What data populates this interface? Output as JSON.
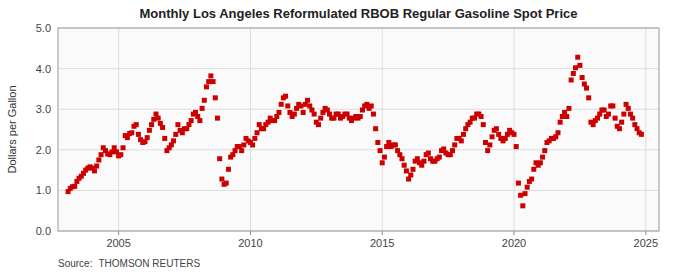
{
  "chart_data": {
    "type": "scatter",
    "title": "Monthly Los Angeles Reformulated RBOB Regular Gasoline Spot Price",
    "y_label": "Dollars per Gallon",
    "annotations": [
      "Source:",
      "THOMSON REUTERS"
    ],
    "color": "#cc0000",
    "marker": "square",
    "grid": true,
    "xlim": [
      2002.7,
      2025.5
    ],
    "xticks": [
      2005,
      2010,
      2015,
      2020,
      2025
    ],
    "ylim": [
      0.0,
      5.0
    ],
    "yticks": [
      {
        "value": 0.0,
        "label": "0.0"
      },
      {
        "value": 1.0,
        "label": "1.0"
      },
      {
        "value": 2.0,
        "label": "2.0"
      },
      {
        "value": 3.0,
        "label": "3.0"
      },
      {
        "value": 4.0,
        "label": "4.0"
      },
      {
        "value": 5.0,
        "label": "5.0"
      }
    ],
    "x": [
      2003.083,
      2003.167,
      2003.25,
      2003.333,
      2003.417,
      2003.5,
      2003.583,
      2003.667,
      2003.75,
      2003.833,
      2003.917,
      2004.0,
      2004.083,
      2004.167,
      2004.25,
      2004.333,
      2004.417,
      2004.5,
      2004.583,
      2004.667,
      2004.75,
      2004.833,
      2004.917,
      2005.0,
      2005.083,
      2005.167,
      2005.25,
      2005.333,
      2005.417,
      2005.5,
      2005.583,
      2005.667,
      2005.75,
      2005.833,
      2005.917,
      2006.0,
      2006.083,
      2006.167,
      2006.25,
      2006.333,
      2006.417,
      2006.5,
      2006.583,
      2006.667,
      2006.75,
      2006.833,
      2006.917,
      2007.0,
      2007.083,
      2007.167,
      2007.25,
      2007.333,
      2007.417,
      2007.5,
      2007.583,
      2007.667,
      2007.75,
      2007.833,
      2007.917,
      2008.0,
      2008.083,
      2008.167,
      2008.25,
      2008.333,
      2008.417,
      2008.5,
      2008.583,
      2008.667,
      2008.75,
      2008.833,
      2008.917,
      2009.0,
      2009.083,
      2009.167,
      2009.25,
      2009.333,
      2009.417,
      2009.5,
      2009.583,
      2009.667,
      2009.75,
      2009.833,
      2009.917,
      2010.0,
      2010.083,
      2010.167,
      2010.25,
      2010.333,
      2010.417,
      2010.5,
      2010.583,
      2010.667,
      2010.75,
      2010.833,
      2010.917,
      2011.0,
      2011.083,
      2011.167,
      2011.25,
      2011.333,
      2011.417,
      2011.5,
      2011.583,
      2011.667,
      2011.75,
      2011.833,
      2011.917,
      2012.0,
      2012.083,
      2012.167,
      2012.25,
      2012.333,
      2012.417,
      2012.5,
      2012.583,
      2012.667,
      2012.75,
      2012.833,
      2012.917,
      2013.0,
      2013.083,
      2013.167,
      2013.25,
      2013.333,
      2013.417,
      2013.5,
      2013.583,
      2013.667,
      2013.75,
      2013.833,
      2013.917,
      2014.0,
      2014.083,
      2014.167,
      2014.25,
      2014.333,
      2014.417,
      2014.5,
      2014.583,
      2014.667,
      2014.75,
      2014.833,
      2014.917,
      2015.0,
      2015.083,
      2015.167,
      2015.25,
      2015.333,
      2015.417,
      2015.5,
      2015.583,
      2015.667,
      2015.75,
      2015.833,
      2015.917,
      2016.0,
      2016.083,
      2016.167,
      2016.25,
      2016.333,
      2016.417,
      2016.5,
      2016.583,
      2016.667,
      2016.75,
      2016.833,
      2016.917,
      2017.0,
      2017.083,
      2017.167,
      2017.25,
      2017.333,
      2017.417,
      2017.5,
      2017.583,
      2017.667,
      2017.75,
      2017.833,
      2017.917,
      2018.0,
      2018.083,
      2018.167,
      2018.25,
      2018.333,
      2018.417,
      2018.5,
      2018.583,
      2018.667,
      2018.75,
      2018.833,
      2018.917,
      2019.0,
      2019.083,
      2019.167,
      2019.25,
      2019.333,
      2019.417,
      2019.5,
      2019.583,
      2019.667,
      2019.75,
      2019.833,
      2019.917,
      2020.0,
      2020.083,
      2020.167,
      2020.25,
      2020.333,
      2020.417,
      2020.5,
      2020.583,
      2020.667,
      2020.75,
      2020.833,
      2020.917,
      2021.0,
      2021.083,
      2021.167,
      2021.25,
      2021.333,
      2021.417,
      2021.5,
      2021.583,
      2021.667,
      2021.75,
      2021.833,
      2021.917,
      2022.0,
      2022.083,
      2022.167,
      2022.25,
      2022.333,
      2022.417,
      2022.5,
      2022.583,
      2022.667,
      2022.75,
      2022.833,
      2022.917,
      2023.0,
      2023.083,
      2023.167,
      2023.25,
      2023.333,
      2023.417,
      2023.5,
      2023.583,
      2023.667,
      2023.75,
      2023.833,
      2023.917,
      2024.0,
      2024.083,
      2024.167,
      2024.25,
      2024.333,
      2024.417,
      2024.5,
      2024.583,
      2024.667,
      2024.75,
      2024.833
    ],
    "values": [
      0.97,
      1.05,
      1.09,
      1.1,
      1.22,
      1.3,
      1.35,
      1.42,
      1.5,
      1.55,
      1.58,
      1.55,
      1.48,
      1.6,
      1.75,
      1.88,
      2.05,
      1.98,
      1.9,
      1.88,
      1.95,
      2.05,
      1.95,
      1.85,
      1.88,
      2.05,
      2.35,
      2.3,
      2.4,
      2.42,
      2.58,
      2.62,
      2.38,
      2.25,
      2.18,
      2.2,
      2.3,
      2.48,
      2.62,
      2.75,
      2.88,
      2.78,
      2.65,
      2.55,
      2.28,
      1.98,
      2.05,
      2.12,
      2.22,
      2.38,
      2.62,
      2.48,
      2.42,
      2.52,
      2.52,
      2.62,
      2.72,
      2.88,
      2.92,
      2.82,
      2.72,
      3.02,
      3.22,
      3.55,
      3.68,
      3.82,
      3.68,
      3.28,
      2.78,
      1.78,
      1.28,
      1.15,
      1.18,
      1.52,
      1.82,
      1.88,
      1.98,
      2.08,
      2.08,
      1.98,
      2.12,
      2.28,
      2.22,
      2.18,
      2.12,
      2.28,
      2.42,
      2.62,
      2.52,
      2.52,
      2.62,
      2.68,
      2.78,
      2.72,
      2.72,
      2.82,
      2.92,
      3.12,
      3.28,
      3.32,
      3.08,
      2.92,
      2.82,
      2.88,
      3.02,
      3.12,
      3.08,
      2.92,
      3.12,
      3.22,
      3.08,
      2.98,
      2.88,
      2.68,
      2.62,
      2.78,
      2.92,
      3.02,
      2.98,
      2.88,
      2.78,
      2.78,
      2.88,
      2.88,
      2.78,
      2.82,
      2.88,
      2.88,
      2.78,
      2.72,
      2.78,
      2.82,
      2.78,
      2.82,
      2.98,
      3.08,
      3.12,
      3.02,
      3.08,
      2.88,
      2.52,
      2.18,
      1.98,
      1.68,
      1.82,
      2.08,
      2.18,
      2.08,
      2.12,
      2.12,
      1.98,
      1.88,
      1.78,
      1.62,
      1.48,
      1.28,
      1.38,
      1.52,
      1.72,
      1.78,
      1.68,
      1.62,
      1.72,
      1.88,
      1.92,
      1.78,
      1.72,
      1.72,
      1.78,
      1.82,
      1.98,
      2.02,
      1.92,
      1.88,
      1.88,
      1.98,
      2.12,
      2.28,
      2.28,
      2.22,
      2.38,
      2.52,
      2.62,
      2.68,
      2.78,
      2.78,
      2.88,
      2.88,
      2.82,
      2.62,
      2.18,
      1.98,
      2.12,
      2.32,
      2.48,
      2.52,
      2.38,
      2.28,
      2.22,
      2.28,
      2.38,
      2.48,
      2.42,
      2.38,
      2.08,
      1.18,
      0.88,
      0.62,
      0.92,
      1.08,
      1.22,
      1.28,
      1.52,
      1.68,
      1.62,
      1.68,
      1.82,
      1.98,
      2.18,
      2.22,
      2.28,
      2.28,
      2.32,
      2.42,
      2.68,
      2.82,
      2.92,
      2.82,
      3.02,
      3.72,
      3.88,
      4.02,
      4.28,
      4.08,
      3.78,
      3.62,
      3.52,
      3.28,
      2.68,
      2.62,
      2.72,
      2.78,
      2.88,
      2.98,
      2.98,
      2.82,
      2.88,
      3.08,
      3.08,
      2.78,
      2.58,
      2.52,
      2.68,
      2.88,
      3.12,
      3.02,
      2.88,
      2.78,
      2.62,
      2.52,
      2.42,
      2.38
    ]
  }
}
